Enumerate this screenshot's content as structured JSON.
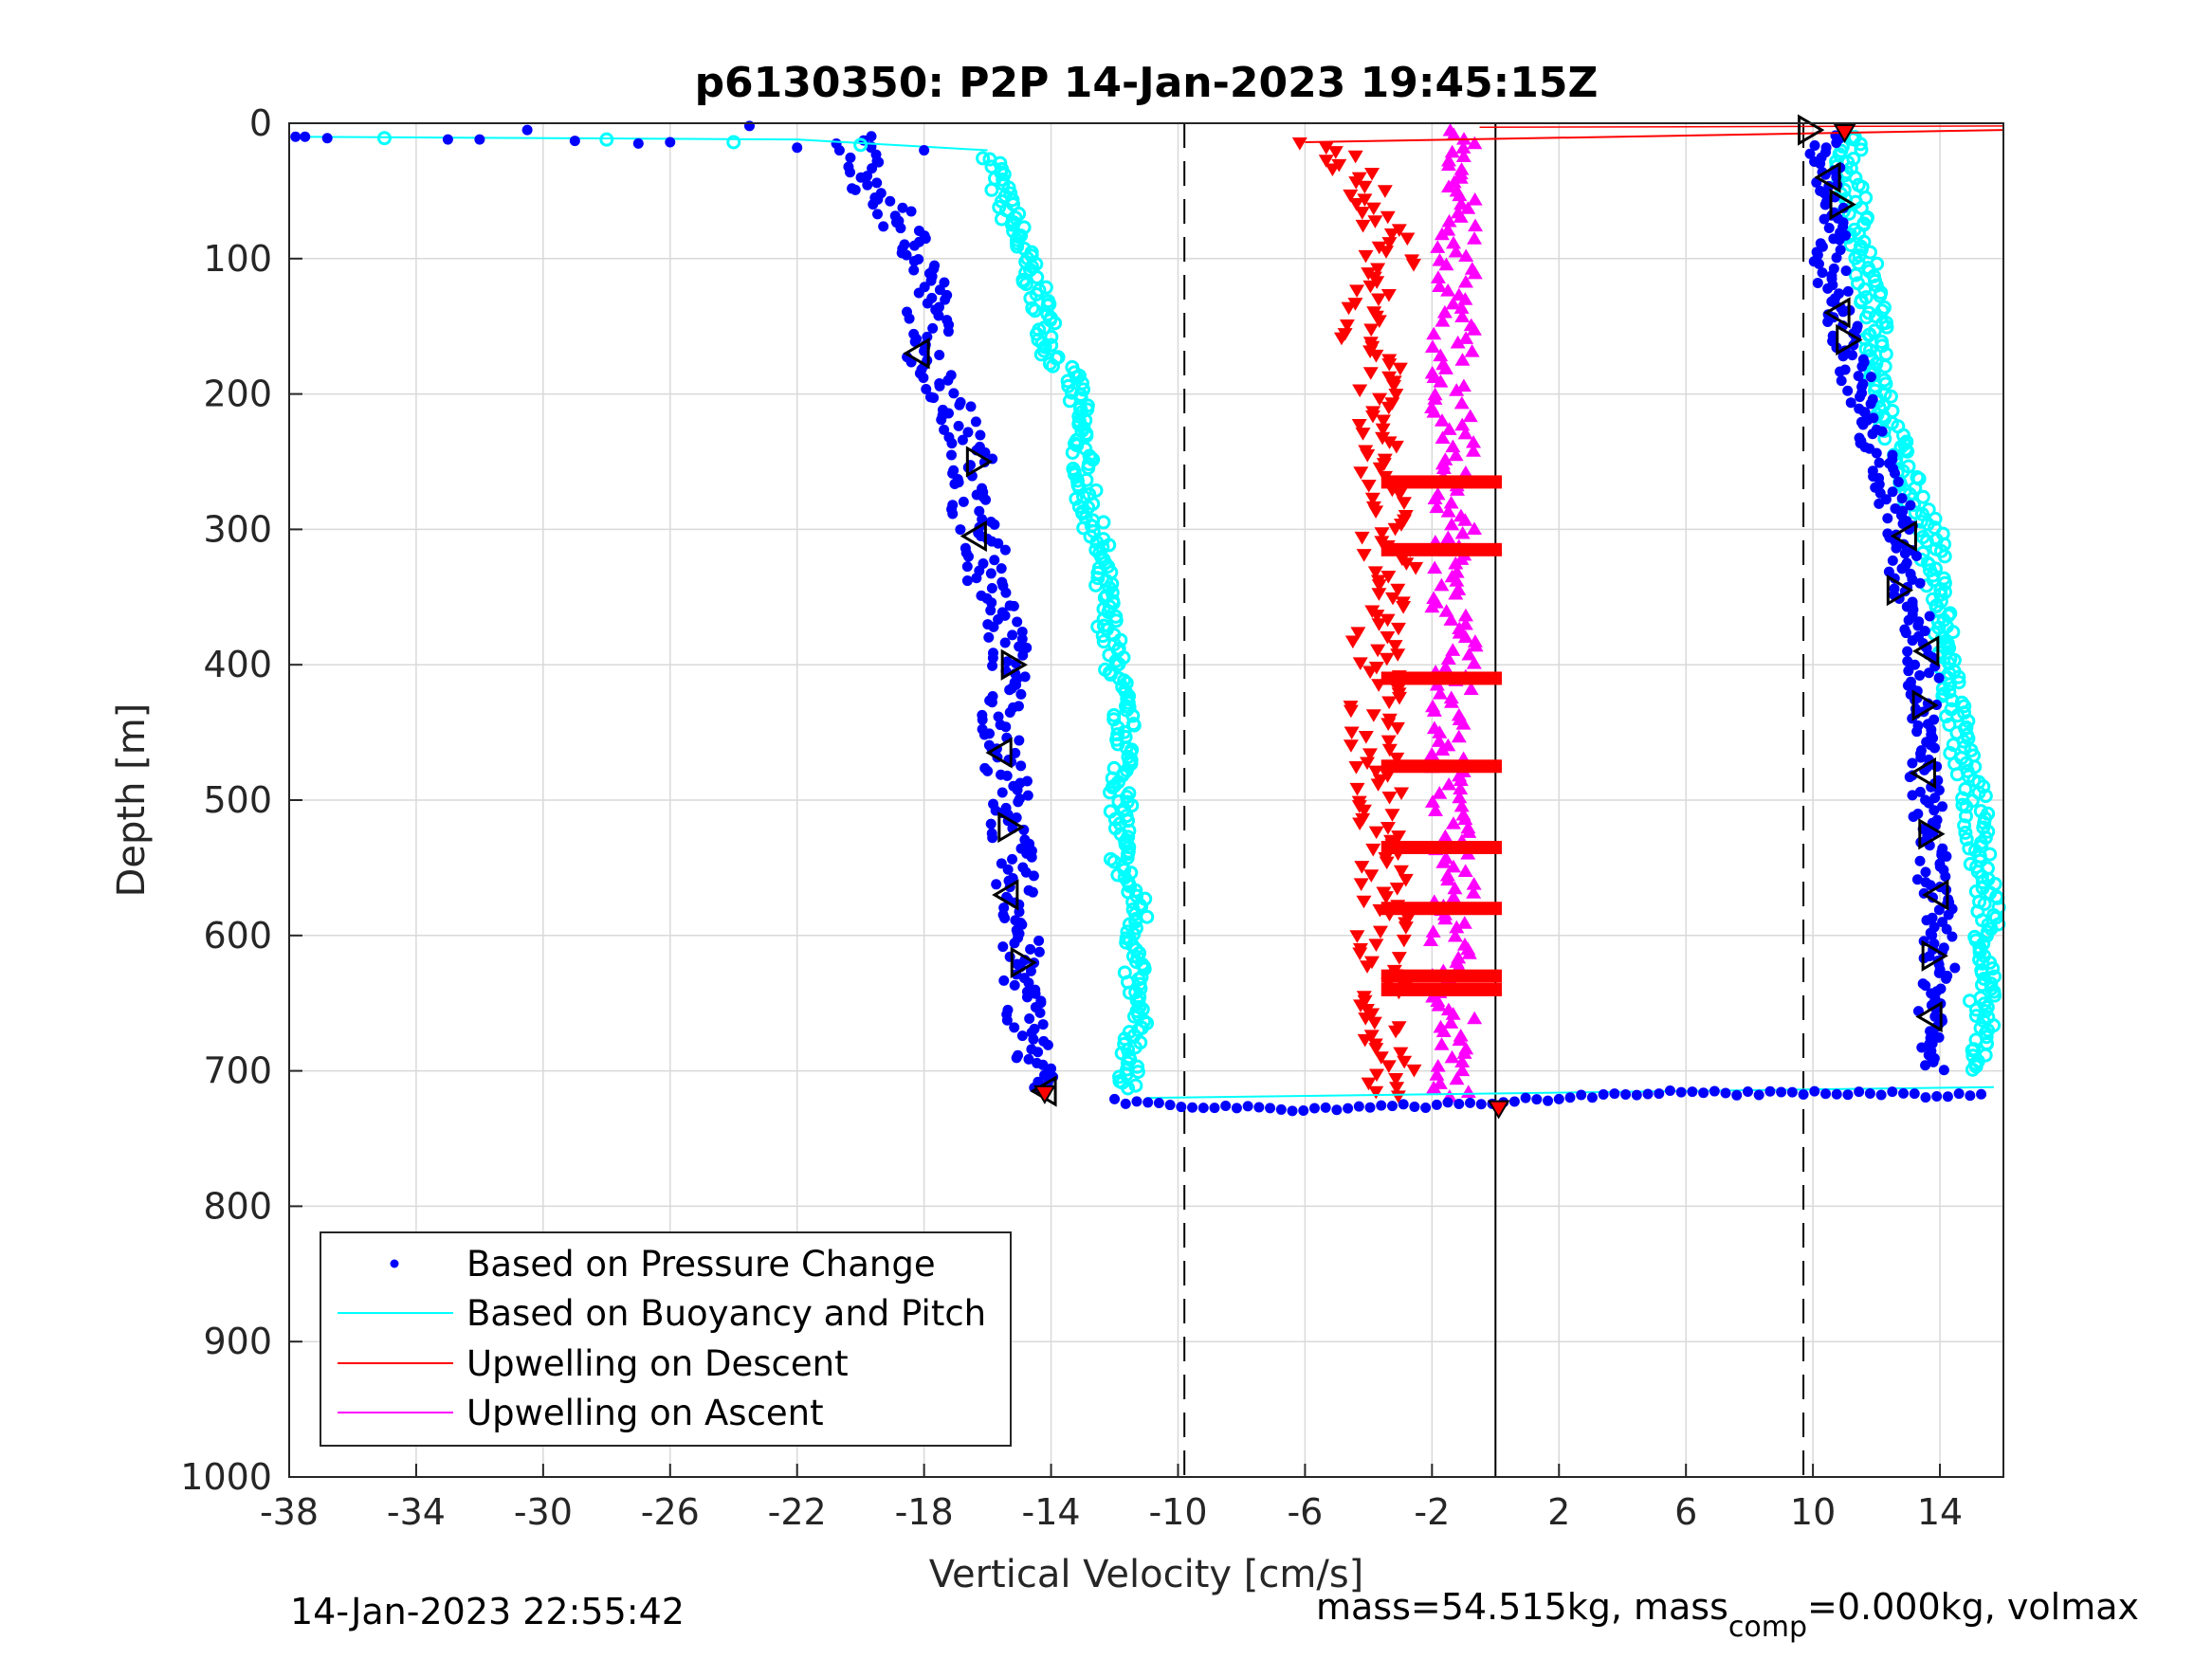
{
  "chart_data": {
    "type": "scatter",
    "title": "p6130350: P2P 14-Jan-2023 19:45:15Z",
    "xlabel": "Vertical Velocity [cm/s]",
    "ylabel": "Depth [m]",
    "xlim": [
      -38,
      16
    ],
    "ylim": [
      0,
      1000
    ],
    "y_reversed": true,
    "grid": true,
    "x_ticks": [
      -38,
      -34,
      -30,
      -26,
      -22,
      -18,
      -14,
      -10,
      -6,
      -2,
      2,
      6,
      10,
      14
    ],
    "y_ticks": [
      0,
      100,
      200,
      300,
      400,
      500,
      600,
      700,
      800,
      900,
      1000
    ],
    "reference_lines": {
      "dashed_x": [
        -9.8,
        9.7
      ],
      "solid_x": [
        0
      ]
    },
    "legend": {
      "placement": "bottom-left",
      "entries": [
        {
          "label": "Based on Pressure Change",
          "marker": "dot",
          "color": "#0000ff"
        },
        {
          "label": "Based on Buoyancy and Pitch",
          "marker": "line",
          "color": "#00ffff"
        },
        {
          "label": "Upwelling on Descent",
          "marker": "line",
          "color": "#ff0000"
        },
        {
          "label": "Upwelling on Ascent",
          "marker": "line",
          "color": "#ff00ff"
        }
      ]
    },
    "series": [
      {
        "name": "Based on Pressure Change (descent)",
        "color": "#0000ff",
        "depth": [
          10,
          20,
          30,
          40,
          60,
          80,
          100,
          120,
          140,
          160,
          175,
          200,
          220,
          250,
          280,
          300,
          320,
          340,
          360,
          380,
          400,
          430,
          460,
          490,
          520,
          550,
          580,
          610,
          640,
          670,
          700,
          715
        ],
        "velocity": [
          -20,
          -20.3,
          -19.8,
          -20.2,
          -19.2,
          -18.6,
          -18,
          -17.8,
          -17.9,
          -17.7,
          -18,
          -17.2,
          -17,
          -16.4,
          -16.6,
          -16.3,
          -16,
          -16.1,
          -15.6,
          -15.4,
          -15.3,
          -15.5,
          -15.6,
          -15.3,
          -15.3,
          -15.2,
          -15,
          -15,
          -14.9,
          -14.7,
          -14.5,
          -14.3
        ]
      },
      {
        "name": "Based on Buoyancy and Pitch (descent)",
        "color": "#00ffff",
        "depth": [
          25,
          50,
          80,
          110,
          140,
          170,
          190,
          220,
          250,
          280,
          310,
          340,
          370,
          400,
          430,
          460,
          490,
          520,
          550,
          580,
          610,
          640,
          670,
          700,
          715
        ],
        "velocity": [
          -15.8,
          -15.6,
          -15.1,
          -14.7,
          -14.2,
          -14,
          -13.3,
          -13.1,
          -13,
          -12.9,
          -12.5,
          -12.4,
          -12.2,
          -12,
          -11.8,
          -11.6,
          -11.8,
          -11.8,
          -11.8,
          -11.2,
          -11.4,
          -11.4,
          -11.3,
          -11.6,
          -11.4
        ]
      },
      {
        "name": "Based on Pressure Change (ascent)",
        "color": "#0000ff",
        "depth": [
          700,
          660,
          620,
          580,
          540,
          500,
          460,
          420,
          380,
          340,
          300,
          260,
          220,
          180,
          140,
          100,
          60,
          30,
          10
        ],
        "velocity": [
          13.9,
          13.8,
          14,
          13.9,
          13.7,
          13.6,
          13.4,
          13.5,
          13.4,
          12.9,
          12.8,
          12.3,
          11.6,
          11.3,
          10.8,
          10.5,
          10.6,
          10.4,
          10.4
        ]
      },
      {
        "name": "Based on Buoyancy and Pitch (ascent)",
        "color": "#00ffff",
        "depth": [
          700,
          660,
          620,
          580,
          540,
          500,
          460,
          420,
          380,
          340,
          300,
          260,
          220,
          180,
          140,
          100,
          60,
          30,
          10
        ],
        "velocity": [
          15.3,
          15.3,
          15.4,
          15.6,
          15.2,
          15.1,
          14.6,
          14.4,
          14.1,
          13.9,
          13.7,
          12.9,
          12.4,
          12.1,
          11.9,
          11.6,
          11.3,
          11.1,
          11.2
        ]
      },
      {
        "name": "Upwelling on Descent",
        "color": "#ff0000",
        "depth": [
          15,
          40,
          70,
          100,
          130,
          160,
          190,
          220,
          250,
          280,
          310,
          340,
          370,
          400,
          430,
          460,
          490,
          520,
          550,
          580,
          610,
          640,
          670,
          700,
          720
        ],
        "velocity": [
          -5.5,
          -4.1,
          -3.5,
          -3.3,
          -3.8,
          -4.2,
          -3.5,
          -3.8,
          -3.5,
          -3.6,
          -3.4,
          -3.2,
          -3.7,
          -3.7,
          -3.8,
          -3.9,
          -3.6,
          -3.5,
          -3.6,
          -3.5,
          -3.6,
          -3.4,
          -3.7,
          -3.3,
          -3.1
        ]
      },
      {
        "name": "Upwelling on Ascent",
        "color": "#ff00ff",
        "depth": [
          720,
          690,
          660,
          630,
          600,
          570,
          540,
          510,
          480,
          450,
          420,
          390,
          360,
          330,
          300,
          270,
          240,
          210,
          180,
          150,
          120,
          90,
          60,
          30,
          5
        ],
        "velocity": [
          -1.3,
          -1.3,
          -1.2,
          -1.5,
          -1.4,
          -1.3,
          -1.2,
          -1.6,
          -1.5,
          -1.3,
          -1.4,
          -1.2,
          -1.4,
          -1.3,
          -1.3,
          -1.4,
          -1.2,
          -1.5,
          -1.4,
          -1.3,
          -1.2,
          -1.3,
          -1.1,
          -1.3,
          -1.2
        ]
      }
    ],
    "surface_transition": {
      "descent_start_depth": [
        10,
        12,
        15,
        18,
        20
      ],
      "descent_start_velocity": [
        -37.8,
        -33,
        -27,
        -22,
        -18
      ],
      "bottom_turn_depth": [
        715,
        722,
        725,
        728,
        726,
        724,
        722,
        720,
        716,
        712
      ],
      "bottom_turn_velocity": [
        -11,
        -8,
        -4,
        0,
        4,
        7,
        9,
        11,
        13,
        15.7
      ]
    },
    "markers": {
      "descent_triangles_depth": [
        170,
        250,
        305,
        400,
        465,
        520,
        570,
        620,
        715
      ],
      "descent_triangles_velocity": [
        -18.2,
        -16.3,
        -16.4,
        -15.2,
        -15.6,
        -15.3,
        -15.4,
        -14.9,
        -14.2
      ],
      "ascent_triangles_depth": [
        5,
        40,
        60,
        140,
        160,
        305,
        345,
        390,
        430,
        480,
        525,
        570,
        615,
        660
      ],
      "ascent_triangles_velocity": [
        9.9,
        10.5,
        10.9,
        10.8,
        11.1,
        12.9,
        12.7,
        13.6,
        13.5,
        13.5,
        13.7,
        13.9,
        13.8,
        13.7
      ],
      "endpoint_markers": [
        {
          "velocity": -14.2,
          "depth": 717
        },
        {
          "velocity": 0.1,
          "depth": 728
        },
        {
          "velocity": 11,
          "depth": 7
        }
      ]
    },
    "annotation_timestamp": "14-Jan-2023 22:55:42",
    "annotation_mass": "mass=54.515kg, mass",
    "annotation_mass_sub": "comp",
    "annotation_mass_tail": "=0.000kg, volmax"
  }
}
